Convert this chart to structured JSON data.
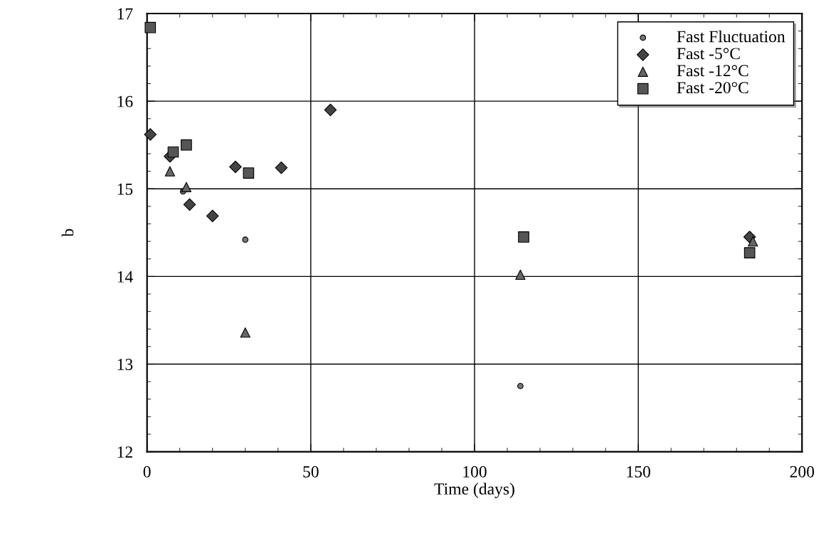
{
  "chart_data": {
    "type": "scatter",
    "xlabel": "Time (days)",
    "ylabel": "b",
    "xlim": [
      0,
      200
    ],
    "xticks": [
      0,
      50,
      100,
      150,
      200
    ],
    "ylim": [
      12,
      17
    ],
    "yticks": [
      12,
      13,
      14,
      15,
      16,
      17
    ],
    "grid": true,
    "legend": "top right",
    "series": [
      {
        "name": "Fast Fluctuation",
        "color": "#777777",
        "marker": "circle",
        "x": [
          11,
          30,
          114
        ],
        "values": [
          14.97,
          14.42,
          12.75
        ]
      },
      {
        "name": "Fast -5°C",
        "color": "#444444",
        "marker": "diamond",
        "x": [
          1,
          7,
          13,
          20,
          27,
          41,
          56,
          184
        ],
        "values": [
          15.62,
          15.37,
          14.82,
          14.69,
          15.25,
          15.24,
          15.9,
          14.45
        ]
      },
      {
        "name": "Fast -12°C",
        "color": "#666666",
        "marker": "triangle",
        "x": [
          7,
          12,
          30,
          114,
          185
        ],
        "values": [
          15.2,
          15.02,
          13.36,
          14.02,
          14.4
        ]
      },
      {
        "name": "Fast -20°C",
        "color": "#555555",
        "marker": "square",
        "x": [
          1,
          8,
          12,
          31,
          115,
          184
        ],
        "values": [
          16.84,
          15.42,
          15.5,
          15.18,
          14.45,
          14.27
        ]
      }
    ]
  }
}
